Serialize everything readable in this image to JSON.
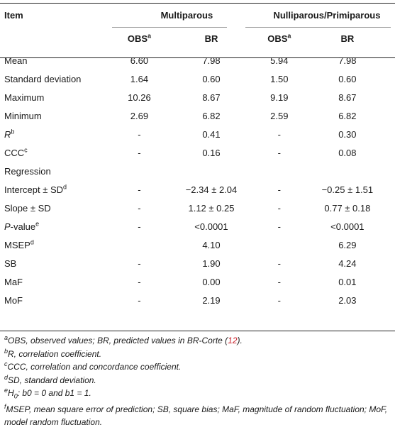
{
  "header": {
    "item": "Item",
    "group1": "Multiparous",
    "group2": "Nulliparous/Primiparous",
    "obs": "OBS",
    "obs_sup": "a",
    "br": "BR"
  },
  "rows": [
    {
      "label": "Mean",
      "sup": "",
      "italic_label": "",
      "m_obs": "6.60",
      "m_br": "7.98",
      "n_obs": "5.94",
      "n_br": "7.98"
    },
    {
      "label": "Standard deviation",
      "sup": "",
      "italic_label": "",
      "m_obs": "1.64",
      "m_br": "0.60",
      "n_obs": "1.50",
      "n_br": "0.60"
    },
    {
      "label": "Maximum",
      "sup": "",
      "italic_label": "",
      "m_obs": "10.26",
      "m_br": "8.67",
      "n_obs": "9.19",
      "n_br": "8.67"
    },
    {
      "label": "Minimum",
      "sup": "",
      "italic_label": "",
      "m_obs": "2.69",
      "m_br": "6.82",
      "n_obs": "2.59",
      "n_br": "6.82"
    },
    {
      "label": "",
      "sup": "b",
      "italic_label": "R",
      "m_obs": "-",
      "m_br": "0.41",
      "n_obs": "-",
      "n_br": "0.30"
    },
    {
      "label": "CCC",
      "sup": "c",
      "italic_label": "",
      "m_obs": "-",
      "m_br": "0.16",
      "n_obs": "-",
      "n_br": "0.08"
    },
    {
      "label": "Regression",
      "sup": "",
      "italic_label": "",
      "m_obs": "",
      "m_br": "",
      "n_obs": "",
      "n_br": ""
    },
    {
      "label": "Intercept ± SD",
      "sup": "d",
      "italic_label": "",
      "m_obs": "-",
      "m_br": "−2.34 ± 2.04",
      "n_obs": "-",
      "n_br": "−0.25 ± 1.51"
    },
    {
      "label": "Slope ± SD",
      "sup": "",
      "italic_label": "",
      "m_obs": "-",
      "m_br": "1.12 ± 0.25",
      "n_obs": "-",
      "n_br": "0.77 ± 0.18"
    },
    {
      "label": "-value",
      "sup": "e",
      "italic_label": "P",
      "m_obs": "-",
      "m_br": "<0.0001",
      "n_obs": "-",
      "n_br": "<0.0001"
    },
    {
      "label": "MSEP",
      "sup": "d",
      "italic_label": "",
      "m_obs": "",
      "m_br": "4.10",
      "n_obs": "",
      "n_br": "6.29"
    },
    {
      "label": "SB",
      "sup": "",
      "italic_label": "",
      "m_obs": "-",
      "m_br": "1.90",
      "n_obs": "-",
      "n_br": "4.24"
    },
    {
      "label": "MaF",
      "sup": "",
      "italic_label": "",
      "m_obs": "-",
      "m_br": "0.00",
      "n_obs": "-",
      "n_br": "0.01"
    },
    {
      "label": "MoF",
      "sup": "",
      "italic_label": "",
      "m_obs": "-",
      "m_br": "2.19",
      "n_obs": "-",
      "n_br": "2.03"
    }
  ],
  "notes": {
    "a_sup": "a",
    "a_text": "OBS, observed values; BR, predicted values in BR-Corte (",
    "a_ref": "12",
    "a_end": ").",
    "b_sup": "b",
    "b_text": "R, correlation coefficient.",
    "c_sup": "c",
    "c_text": "CCC, correlation and concordance coefficient.",
    "d_sup": "d",
    "d_text": "SD, standard deviation.",
    "e_sup": "e",
    "e_h": "H",
    "e_h_sub": "0",
    "e_text": ": b0 = 0 and b1 = 1.",
    "f_sup": "f",
    "f_text": "MSEP, mean square error of prediction; SB, square bias; MaF, magnitude of random fluctuation; MoF, model random fluctuation."
  }
}
